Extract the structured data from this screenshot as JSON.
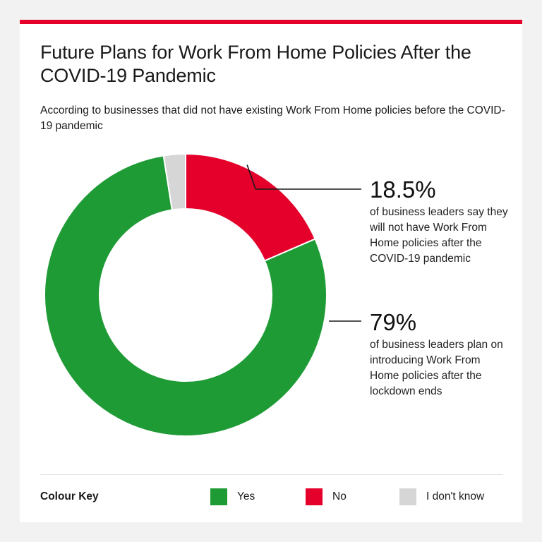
{
  "header": {
    "title": "Future Plans for Work From Home Policies After the COVID-19 Pandemic",
    "subtitle": "According to businesses that did not have existing Work From Home policies before the COVID-19 pandemic"
  },
  "colors": {
    "accent": "#e4002b",
    "yes": "#1f9b36",
    "no": "#e4002b",
    "dont_know": "#d6d6d6"
  },
  "callouts": {
    "no": {
      "value": "18.5%",
      "description": "of business leaders say they will not have Work From Home policies after the COVID-19 pandemic"
    },
    "yes": {
      "value": "79%",
      "description": "of business leaders plan on introducing Work From Home policies after the lockdown ends"
    }
  },
  "legend": {
    "title": "Colour Key",
    "items": [
      {
        "label": "Yes"
      },
      {
        "label": "No"
      },
      {
        "label": "I don't know"
      }
    ]
  },
  "chart_data": {
    "type": "pie",
    "donut": true,
    "title": "Future Plans for Work From Home Policies After the COVID-19 Pandemic",
    "categories": [
      "No",
      "Yes",
      "I don't know"
    ],
    "values": [
      18.5,
      79,
      2.5
    ],
    "legend_position": "bottom"
  }
}
